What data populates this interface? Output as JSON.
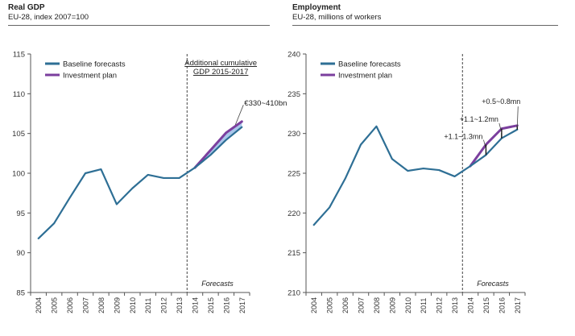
{
  "chart_data": [
    {
      "type": "line",
      "title": "Real GDP",
      "subtitle": "EU-28, index 2007=100",
      "x": [
        "2004",
        "2005",
        "2006",
        "2007",
        "2008",
        "2009",
        "2010",
        "2011",
        "2012",
        "2013",
        "2014",
        "2015",
        "2016",
        "2017"
      ],
      "ylim": [
        85,
        115
      ],
      "yticks": [
        85,
        90,
        95,
        100,
        105,
        110,
        115
      ],
      "legend": "top-left",
      "grid": false,
      "series": [
        {
          "name": "Baseline forecasts",
          "color": "#2e6f95",
          "values": [
            91.8,
            93.7,
            96.9,
            100.0,
            100.5,
            96.1,
            98.1,
            99.8,
            99.4,
            99.4,
            100.7,
            102.3,
            104.2,
            105.8
          ]
        },
        {
          "name": "Investment plan",
          "color": "#7b3f9e",
          "values": [
            null,
            null,
            null,
            null,
            null,
            null,
            null,
            null,
            null,
            null,
            100.7,
            102.9,
            105.1,
            106.5
          ]
        }
      ],
      "band": {
        "color": "#a9c6ea",
        "from_index": 10
      },
      "forecast_divider_after": "2013",
      "annotations": [
        {
          "id": "cumulative",
          "text_lines": [
            "Additional cumulative",
            "GDP 2015-2017"
          ]
        },
        {
          "id": "range",
          "text": "€330~410bn"
        },
        {
          "id": "forecasts",
          "text": "Forecasts"
        }
      ]
    },
    {
      "type": "line",
      "title": "Employment",
      "subtitle": "EU-28, millions of workers",
      "x": [
        "2004",
        "2005",
        "2006",
        "2007",
        "2008",
        "2009",
        "2010",
        "2011",
        "2012",
        "2013",
        "2014",
        "2015",
        "2016",
        "2017"
      ],
      "ylim": [
        210,
        240
      ],
      "yticks": [
        210,
        215,
        220,
        225,
        230,
        235,
        240
      ],
      "legend": "top-left",
      "grid": false,
      "series": [
        {
          "name": "Baseline forecasts",
          "color": "#2e6f95",
          "values": [
            218.5,
            220.7,
            224.3,
            228.6,
            230.9,
            226.8,
            225.3,
            225.6,
            225.4,
            224.6,
            225.9,
            227.3,
            229.4,
            230.5
          ]
        },
        {
          "name": "Investment plan",
          "color": "#7b3f9e",
          "values": [
            null,
            null,
            null,
            null,
            null,
            null,
            null,
            null,
            null,
            null,
            225.9,
            228.6,
            230.6,
            231.0
          ]
        }
      ],
      "forecast_divider_after": "2013",
      "annotations": [
        {
          "id": "a2015",
          "text": "+1.1~1.3mn"
        },
        {
          "id": "a2016",
          "text": "+1.1~1.2mn"
        },
        {
          "id": "a2017",
          "text": "+0.5~0.8mn"
        },
        {
          "id": "forecasts",
          "text": "Forecasts"
        }
      ]
    }
  ]
}
